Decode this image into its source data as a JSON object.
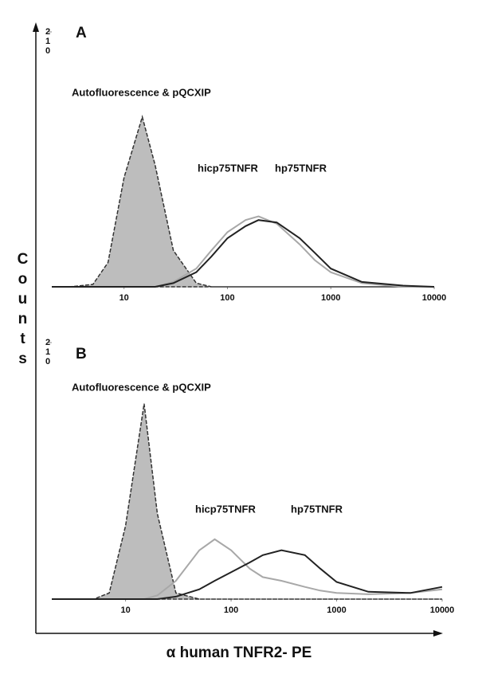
{
  "figure": {
    "xlabel": "α human TNFR2- PE",
    "ylabel": "Counts"
  },
  "chart_data": [
    {
      "type": "line",
      "title": "A",
      "xscale": "log",
      "xlim": [
        2,
        10000
      ],
      "ylim": [
        0,
        210
      ],
      "xticks": [
        10,
        100,
        1000,
        10000
      ],
      "yticks": [
        {
          "value": 210,
          "label": "210"
        }
      ],
      "x": [
        2,
        3,
        5,
        7,
        10,
        15,
        20,
        30,
        50,
        70,
        100,
        150,
        200,
        300,
        500,
        700,
        1000,
        2000,
        5000,
        10000
      ],
      "series": [
        {
          "name": "Autofluorescence & pQCXIP",
          "color": "#bdbdbd",
          "values": [
            0,
            0,
            2,
            20,
            90,
            140,
            100,
            30,
            3,
            0,
            0,
            0,
            0,
            0,
            0,
            0,
            0,
            0,
            0,
            0
          ]
        },
        {
          "name": "hicp75TNFR",
          "color": "#a8a8a8",
          "values": [
            0,
            0,
            0,
            0,
            0,
            0,
            0,
            4,
            15,
            30,
            45,
            55,
            58,
            52,
            35,
            22,
            12,
            3,
            0,
            0
          ]
        },
        {
          "name": "hp75TNFR",
          "color": "#222222",
          "values": [
            0,
            0,
            0,
            0,
            0,
            0,
            0,
            3,
            12,
            25,
            40,
            50,
            55,
            53,
            40,
            28,
            15,
            4,
            1,
            0
          ]
        }
      ]
    },
    {
      "type": "line",
      "title": "B",
      "xscale": "log",
      "xlim": [
        2,
        10000
      ],
      "ylim": [
        0,
        210
      ],
      "xticks": [
        10,
        100,
        1000,
        10000
      ],
      "yticks": [
        {
          "value": 210,
          "label": "210"
        }
      ],
      "x": [
        2,
        3,
        5,
        7,
        10,
        15,
        20,
        30,
        50,
        70,
        100,
        150,
        200,
        300,
        500,
        700,
        1000,
        2000,
        5000,
        10000
      ],
      "series": [
        {
          "name": "Autofluorescence & pQCXIP",
          "color": "#bdbdbd",
          "values": [
            0,
            0,
            0,
            5,
            60,
            160,
            70,
            5,
            0,
            0,
            0,
            0,
            0,
            0,
            0,
            0,
            0,
            0,
            0,
            0
          ]
        },
        {
          "name": "hicp75TNFR",
          "color": "#a8a8a8",
          "values": [
            0,
            0,
            0,
            0,
            0,
            0,
            3,
            15,
            40,
            49,
            40,
            25,
            18,
            15,
            10,
            7,
            5,
            4,
            5,
            8
          ]
        },
        {
          "name": "hp75TNFR",
          "color": "#222222",
          "values": [
            0,
            0,
            0,
            0,
            0,
            0,
            0,
            2,
            8,
            15,
            22,
            30,
            36,
            40,
            36,
            25,
            14,
            6,
            5,
            10
          ]
        }
      ]
    }
  ]
}
